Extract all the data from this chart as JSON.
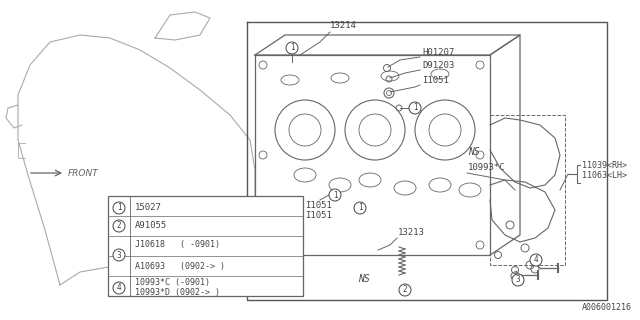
{
  "bg_color": "#ffffff",
  "line_color": "#aaaaaa",
  "dark_line": "#666666",
  "border_color": "#555555",
  "text_color": "#444444",
  "part_number_bottom": "A006001216",
  "labels": {
    "front": "FRONT",
    "13214": "13214",
    "H01207": "H01207",
    "D91203": "D91203",
    "I1051_top": "I1051",
    "NS_right": "NS",
    "NS_bottom": "NS",
    "10993C": "10993*C",
    "11039RH": "11039<RH>",
    "11063LH": "11063<LH>",
    "13213": "13213",
    "I1051_left": "I1051"
  },
  "font_size_label": 6.5,
  "font_size_legend": 6.5,
  "font_size_part": 6.5
}
